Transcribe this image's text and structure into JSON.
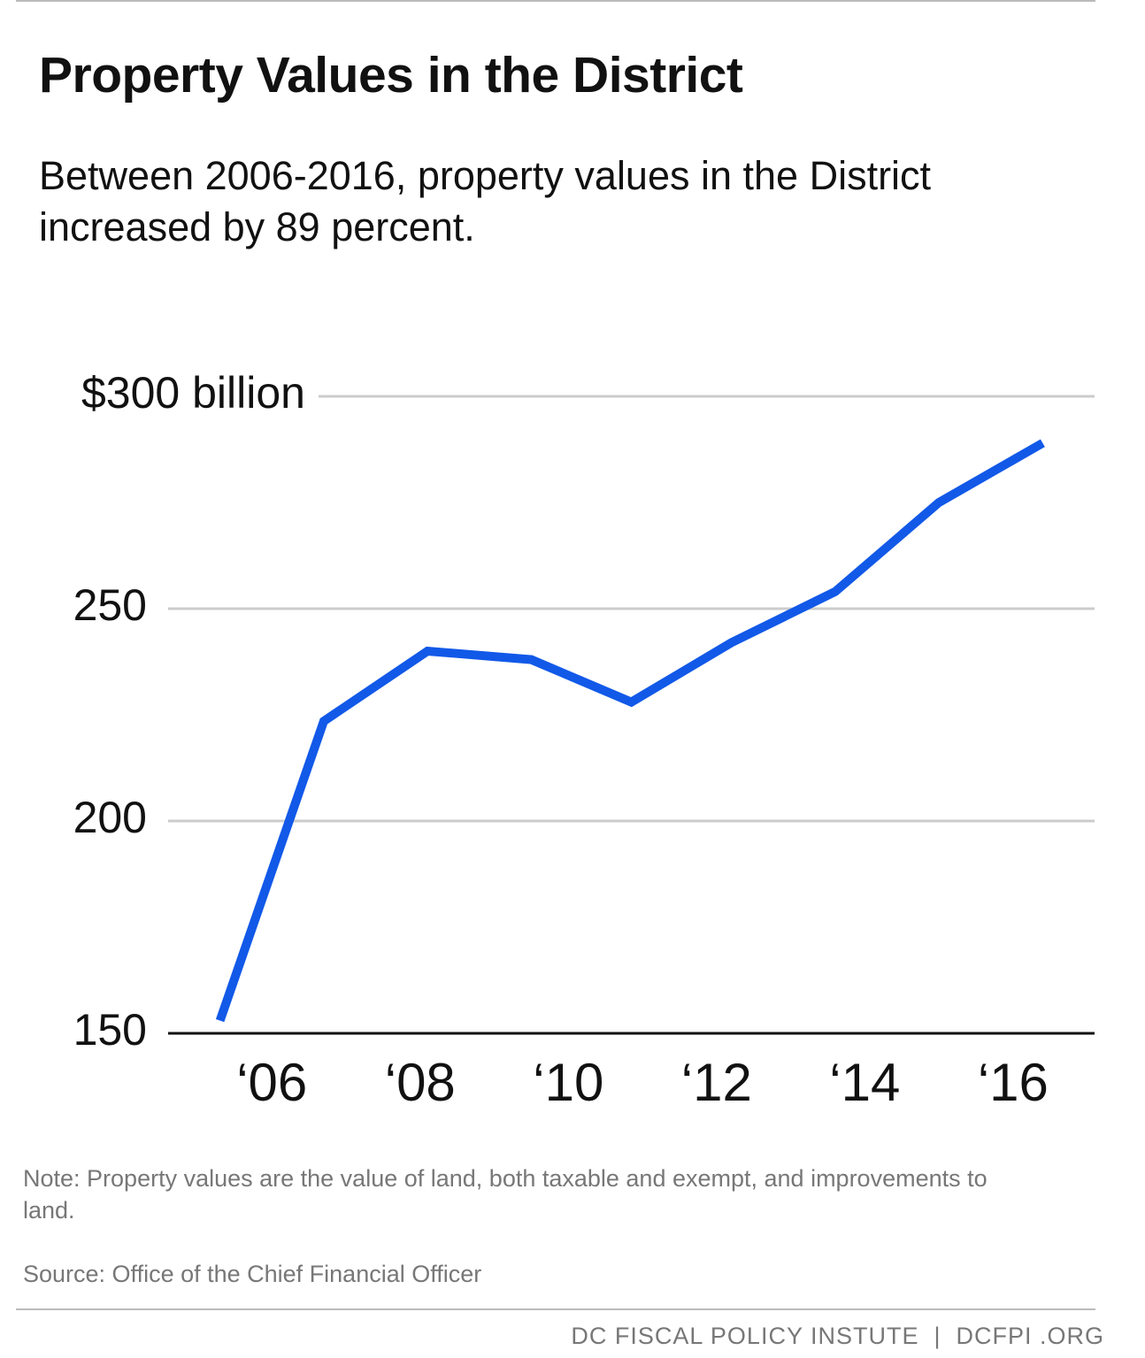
{
  "chart_data": {
    "type": "line",
    "title": "Property Values in the District",
    "subtitle": "Between 2006-2016, property values in the District increased by 89 percent.",
    "x": [
      2005.3,
      2006.7,
      2008.1,
      2009.5,
      2010.85,
      2012.2,
      2013.6,
      2015,
      2016.4
    ],
    "series": [
      {
        "name": "Property values",
        "color": "#1259e8",
        "values": [
          153,
          223.5,
          240,
          238,
          228,
          242,
          254,
          275,
          289
        ]
      }
    ],
    "xlim": [
      2004.6,
      2017.1
    ],
    "xticks": [
      {
        "value": 2006,
        "label": "‘06"
      },
      {
        "value": 2008,
        "label": "‘08"
      },
      {
        "value": 2010,
        "label": "‘10"
      },
      {
        "value": 2012,
        "label": "‘12"
      },
      {
        "value": 2014,
        "label": "‘14"
      },
      {
        "value": 2016,
        "label": "‘16"
      }
    ],
    "ylim": [
      150,
      300
    ],
    "yticks": [
      150,
      200,
      250,
      {
        "value": 300,
        "label": "$300 billion"
      }
    ],
    "grid": true,
    "note": "Note: Property values are the value of land, both taxable and exempt, and improvements to land.",
    "source": "Source: Office of the Chief Financial Officer",
    "footer": "DC FISCAL POLICY INSTUTE  |  DCFPI .ORG"
  }
}
